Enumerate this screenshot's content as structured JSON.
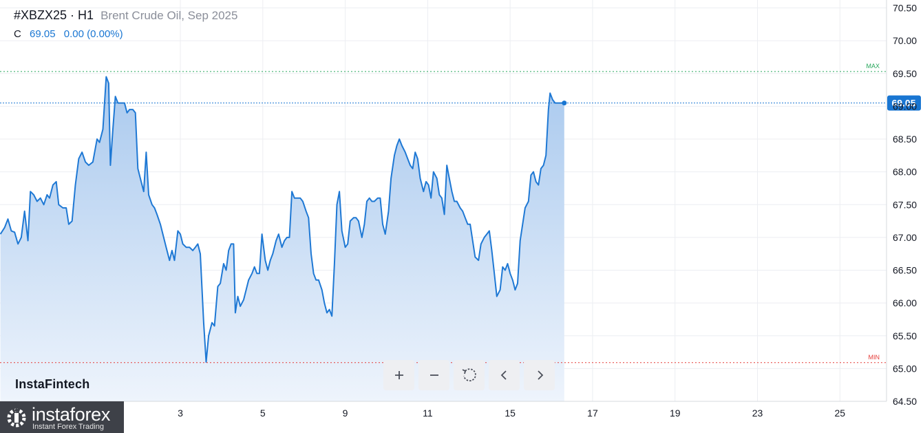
{
  "header": {
    "symbol": "#XBZX25 · H1",
    "description": "Brent Crude Oil, Sep 2025",
    "ohlc_label": "C",
    "close_value": "69.05",
    "change": "0.00 (0.00%)"
  },
  "watermark": "InstaFintech",
  "logo": {
    "name": "instaforex",
    "tagline": "Instant Forex Trading"
  },
  "controls": [
    {
      "name": "zoom-in-button",
      "icon": "plus-icon"
    },
    {
      "name": "zoom-out-button",
      "icon": "minus-icon"
    },
    {
      "name": "reset-button",
      "icon": "reset-icon"
    },
    {
      "name": "scroll-left-button",
      "icon": "chevron-left-icon"
    },
    {
      "name": "scroll-right-button",
      "icon": "chevron-right-icon"
    }
  ],
  "colors": {
    "line": "#1e78d4",
    "area_top": "#a9c9ee",
    "area_bottom": "#eef4fc",
    "last_price_bg": "#1976d2",
    "max_line": "#26a65b",
    "min_line": "#e53935",
    "grid": "#eceef2"
  },
  "chart_data": {
    "type": "area",
    "title": "",
    "xlabel": "",
    "ylabel": "",
    "ylim": [
      64.5,
      70.5
    ],
    "y_ticks": [
      "64.50",
      "65.00",
      "65.50",
      "66.00",
      "66.50",
      "67.00",
      "67.50",
      "68.00",
      "68.50",
      "69.00",
      "69.50",
      "70.00",
      "70.50"
    ],
    "x_ticks": [
      {
        "label": "3",
        "x": 15.0
      },
      {
        "label": "5",
        "x": 24.9
      },
      {
        "label": "9",
        "x": 34.8
      },
      {
        "label": "11",
        "x": 44.7
      },
      {
        "label": "15",
        "x": 54.6
      },
      {
        "label": "17",
        "x": 64.5
      },
      {
        "label": "19",
        "x": 74.4
      },
      {
        "label": "23",
        "x": 84.3
      },
      {
        "label": "25",
        "x": 94.2
      }
    ],
    "last_price": "69.05",
    "max": {
      "label": "MAX",
      "value": 69.53
    },
    "min": {
      "label": "MIN",
      "value": 65.09
    },
    "series": [
      {
        "points": [
          [
            -6.6,
            67.05
          ],
          [
            -6.1,
            67.15
          ],
          [
            -5.7,
            67.28
          ],
          [
            -5.3,
            67.1
          ],
          [
            -4.9,
            67.08
          ],
          [
            -4.5,
            66.9
          ],
          [
            -4.1,
            67.0
          ],
          [
            -3.7,
            67.4
          ],
          [
            -3.3,
            66.95
          ],
          [
            -3.0,
            67.7
          ],
          [
            -2.6,
            67.65
          ],
          [
            -2.2,
            67.55
          ],
          [
            -1.8,
            67.6
          ],
          [
            -1.4,
            67.5
          ],
          [
            -1.0,
            67.65
          ],
          [
            -0.7,
            67.6
          ],
          [
            -0.3,
            67.8
          ],
          [
            0.1,
            67.85
          ],
          [
            0.4,
            67.5
          ],
          [
            0.9,
            67.45
          ],
          [
            1.3,
            67.45
          ],
          [
            1.6,
            67.2
          ],
          [
            2.0,
            67.25
          ],
          [
            2.4,
            67.8
          ],
          [
            2.8,
            68.2
          ],
          [
            3.2,
            68.3
          ],
          [
            3.6,
            68.15
          ],
          [
            4.0,
            68.1
          ],
          [
            4.5,
            68.15
          ],
          [
            5.0,
            68.5
          ],
          [
            5.3,
            68.45
          ],
          [
            5.7,
            68.65
          ],
          [
            6.1,
            69.45
          ],
          [
            6.4,
            69.35
          ],
          [
            6.6,
            68.1
          ],
          [
            6.9,
            68.65
          ],
          [
            7.2,
            69.15
          ],
          [
            7.5,
            69.05
          ],
          [
            7.9,
            69.05
          ],
          [
            8.3,
            69.05
          ],
          [
            8.6,
            68.9
          ],
          [
            8.9,
            68.95
          ],
          [
            9.3,
            68.95
          ],
          [
            9.6,
            68.9
          ],
          [
            9.9,
            68.05
          ],
          [
            10.3,
            67.85
          ],
          [
            10.6,
            67.7
          ],
          [
            10.9,
            68.3
          ],
          [
            11.2,
            67.65
          ],
          [
            11.6,
            67.5
          ],
          [
            11.9,
            67.45
          ],
          [
            12.2,
            67.35
          ],
          [
            12.6,
            67.2
          ],
          [
            12.9,
            67.05
          ],
          [
            13.3,
            66.85
          ],
          [
            13.7,
            66.65
          ],
          [
            14.0,
            66.8
          ],
          [
            14.3,
            66.65
          ],
          [
            14.7,
            67.1
          ],
          [
            15.0,
            67.05
          ],
          [
            15.3,
            66.9
          ],
          [
            15.7,
            66.85
          ],
          [
            16.1,
            66.85
          ],
          [
            16.5,
            66.8
          ],
          [
            16.8,
            66.85
          ],
          [
            17.1,
            66.9
          ],
          [
            17.4,
            66.75
          ],
          [
            17.8,
            65.7
          ],
          [
            18.1,
            65.1
          ],
          [
            18.4,
            65.5
          ],
          [
            18.8,
            65.7
          ],
          [
            19.1,
            65.65
          ],
          [
            19.5,
            66.25
          ],
          [
            19.8,
            66.3
          ],
          [
            20.2,
            66.6
          ],
          [
            20.5,
            66.5
          ],
          [
            20.8,
            66.8
          ],
          [
            21.1,
            66.9
          ],
          [
            21.4,
            66.9
          ],
          [
            21.6,
            65.85
          ],
          [
            21.9,
            66.1
          ],
          [
            22.2,
            65.95
          ],
          [
            22.6,
            66.05
          ],
          [
            22.9,
            66.2
          ],
          [
            23.2,
            66.35
          ],
          [
            23.6,
            66.45
          ],
          [
            23.9,
            66.55
          ],
          [
            24.2,
            66.45
          ],
          [
            24.5,
            66.45
          ],
          [
            24.8,
            67.05
          ],
          [
            25.2,
            66.65
          ],
          [
            25.5,
            66.5
          ],
          [
            25.8,
            66.65
          ],
          [
            26.1,
            66.75
          ],
          [
            26.5,
            66.95
          ],
          [
            26.8,
            67.05
          ],
          [
            27.2,
            66.85
          ],
          [
            27.5,
            66.95
          ],
          [
            27.8,
            67.0
          ],
          [
            28.1,
            67.0
          ],
          [
            28.4,
            67.7
          ],
          [
            28.7,
            67.6
          ],
          [
            29.1,
            67.6
          ],
          [
            29.4,
            67.6
          ],
          [
            29.7,
            67.55
          ],
          [
            30.1,
            67.4
          ],
          [
            30.4,
            67.3
          ],
          [
            30.7,
            66.75
          ],
          [
            31.0,
            66.45
          ],
          [
            31.3,
            66.35
          ],
          [
            31.6,
            66.35
          ],
          [
            32.0,
            66.2
          ],
          [
            32.3,
            66.0
          ],
          [
            32.6,
            65.85
          ],
          [
            32.9,
            65.9
          ],
          [
            33.2,
            65.8
          ],
          [
            33.5,
            66.6
          ],
          [
            33.8,
            67.5
          ],
          [
            34.1,
            67.7
          ],
          [
            34.4,
            67.1
          ],
          [
            34.8,
            66.85
          ],
          [
            35.1,
            66.9
          ],
          [
            35.4,
            67.25
          ],
          [
            35.8,
            67.3
          ],
          [
            36.1,
            67.3
          ],
          [
            36.4,
            67.25
          ],
          [
            36.8,
            67.0
          ],
          [
            37.1,
            67.2
          ],
          [
            37.4,
            67.55
          ],
          [
            37.7,
            67.6
          ],
          [
            38.0,
            67.55
          ],
          [
            38.3,
            67.55
          ],
          [
            38.7,
            67.6
          ],
          [
            39.0,
            67.6
          ],
          [
            39.3,
            67.2
          ],
          [
            39.6,
            67.05
          ],
          [
            40.0,
            67.4
          ],
          [
            40.3,
            67.9
          ],
          [
            40.7,
            68.25
          ],
          [
            41.0,
            68.4
          ],
          [
            41.3,
            68.5
          ],
          [
            41.6,
            68.4
          ],
          [
            42.0,
            68.3
          ],
          [
            42.3,
            68.2
          ],
          [
            42.6,
            68.1
          ],
          [
            42.9,
            68.05
          ],
          [
            43.2,
            68.3
          ],
          [
            43.5,
            68.2
          ],
          [
            43.8,
            67.9
          ],
          [
            44.2,
            67.7
          ],
          [
            44.5,
            67.85
          ],
          [
            44.8,
            67.8
          ],
          [
            45.1,
            67.6
          ],
          [
            45.4,
            68.0
          ],
          [
            45.8,
            67.9
          ],
          [
            46.1,
            67.65
          ],
          [
            46.4,
            67.6
          ],
          [
            46.7,
            67.35
          ],
          [
            47.0,
            68.1
          ],
          [
            47.3,
            67.9
          ],
          [
            47.6,
            67.7
          ],
          [
            47.9,
            67.55
          ],
          [
            48.2,
            67.55
          ],
          [
            48.6,
            67.45
          ],
          [
            48.9,
            67.4
          ],
          [
            49.2,
            67.3
          ],
          [
            49.5,
            67.2
          ],
          [
            49.8,
            67.2
          ],
          [
            50.1,
            66.95
          ],
          [
            50.4,
            66.7
          ],
          [
            50.8,
            66.65
          ],
          [
            51.1,
            66.9
          ],
          [
            51.5,
            67.0
          ],
          [
            51.8,
            67.05
          ],
          [
            52.1,
            67.1
          ],
          [
            52.4,
            66.8
          ],
          [
            52.7,
            66.45
          ],
          [
            53.0,
            66.1
          ],
          [
            53.4,
            66.2
          ],
          [
            53.7,
            66.55
          ],
          [
            54.0,
            66.5
          ],
          [
            54.3,
            66.6
          ],
          [
            54.6,
            66.45
          ],
          [
            54.9,
            66.35
          ],
          [
            55.2,
            66.2
          ],
          [
            55.5,
            66.3
          ],
          [
            55.8,
            66.95
          ],
          [
            56.1,
            67.2
          ],
          [
            56.4,
            67.45
          ],
          [
            56.8,
            67.55
          ],
          [
            57.1,
            67.95
          ],
          [
            57.4,
            68.0
          ],
          [
            57.7,
            67.85
          ],
          [
            58.0,
            67.8
          ],
          [
            58.3,
            68.05
          ],
          [
            58.6,
            68.1
          ],
          [
            58.9,
            68.25
          ],
          [
            59.2,
            68.95
          ],
          [
            59.4,
            69.2
          ],
          [
            59.7,
            69.1
          ],
          [
            60.0,
            69.05
          ],
          [
            60.4,
            69.05
          ],
          [
            60.7,
            69.05
          ],
          [
            61.1,
            69.05
          ]
        ]
      }
    ]
  }
}
